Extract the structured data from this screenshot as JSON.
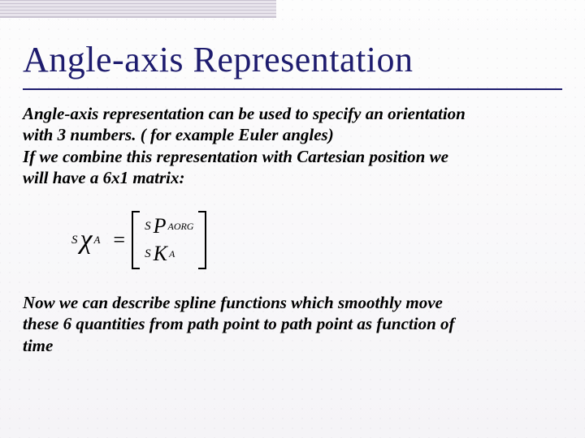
{
  "slide": {
    "title": "Angle-axis Representation",
    "paragraph1_line1": "Angle-axis representation can be used to specify an orientation",
    "paragraph1_line2": "with 3 numbers. ( for example Euler angles)",
    "paragraph1_line3": "If we combine this representation with Cartesian position we",
    "paragraph1_line4": "will have a 6x1 matrix:",
    "paragraph2_line1": "Now we can describe spline functions which smoothly move",
    "paragraph2_line2": "these 6 quantities from path point to path point as function of",
    "paragraph2_line3": "time"
  },
  "equation": {
    "lhs_pre": "S",
    "lhs_symbol": "χ",
    "lhs_sub": "A",
    "equals": "=",
    "row1_pre": "S",
    "row1_symbol": "P",
    "row1_sub": "AORG",
    "row2_pre": "S",
    "row2_symbol": "K",
    "row2_sub": "A"
  },
  "styling": {
    "title_color": "#1e1c6e",
    "title_fontsize": 44,
    "body_fontsize": 21,
    "background_gradient_top": "#fdfdfd",
    "background_gradient_bottom": "#f5f4f7",
    "dot_color": "#d8d2dd",
    "dot_spacing": 12,
    "top_bar_width": 340,
    "top_bar_height": 22,
    "underline_color": "#1e1c6e",
    "slide_width": 720,
    "slide_height": 540
  }
}
